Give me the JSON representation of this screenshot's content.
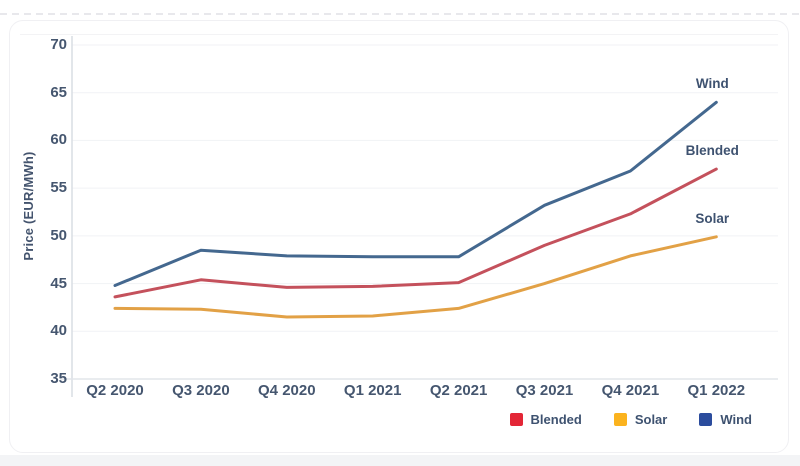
{
  "page": {
    "background_color": "#ffffff",
    "bottom_strip_color": "#f3f4f6",
    "card_border_color": "#f0f0f3"
  },
  "chart_data": {
    "type": "line",
    "title": "",
    "xlabel": "",
    "ylabel": "Price (EUR/MWh)",
    "categories": [
      "Q2 2020",
      "Q3 2020",
      "Q4 2020",
      "Q1 2021",
      "Q2 2021",
      "Q3 2021",
      "Q4 2021",
      "Q1 2022"
    ],
    "yticks": [
      70,
      65,
      60,
      55,
      50,
      45,
      40,
      35
    ],
    "ylim": [
      35,
      71.5
    ],
    "grid": true,
    "legend_position": "bottom-right",
    "axis_color": "#d9dde3",
    "grid_color": "#f1f2f5",
    "baseline_color": "#e2e5ea",
    "tick_text_color": "#45566f",
    "series": [
      {
        "name": "Blended",
        "line_color": "#c4515c",
        "legend_color": "#e32636",
        "values": [
          43.6,
          45.4,
          44.6,
          44.7,
          45.1,
          49.0,
          52.3,
          57.0
        ]
      },
      {
        "name": "Solar",
        "line_color": "#e2a146",
        "legend_color": "#fbb31e",
        "values": [
          42.4,
          42.3,
          41.5,
          41.6,
          42.4,
          45.0,
          47.9,
          49.9
        ]
      },
      {
        "name": "Wind",
        "line_color": "#44688f",
        "legend_color": "#2b4c9d",
        "values": [
          44.8,
          48.5,
          47.9,
          47.8,
          47.8,
          53.2,
          56.8,
          64.0
        ]
      }
    ]
  }
}
